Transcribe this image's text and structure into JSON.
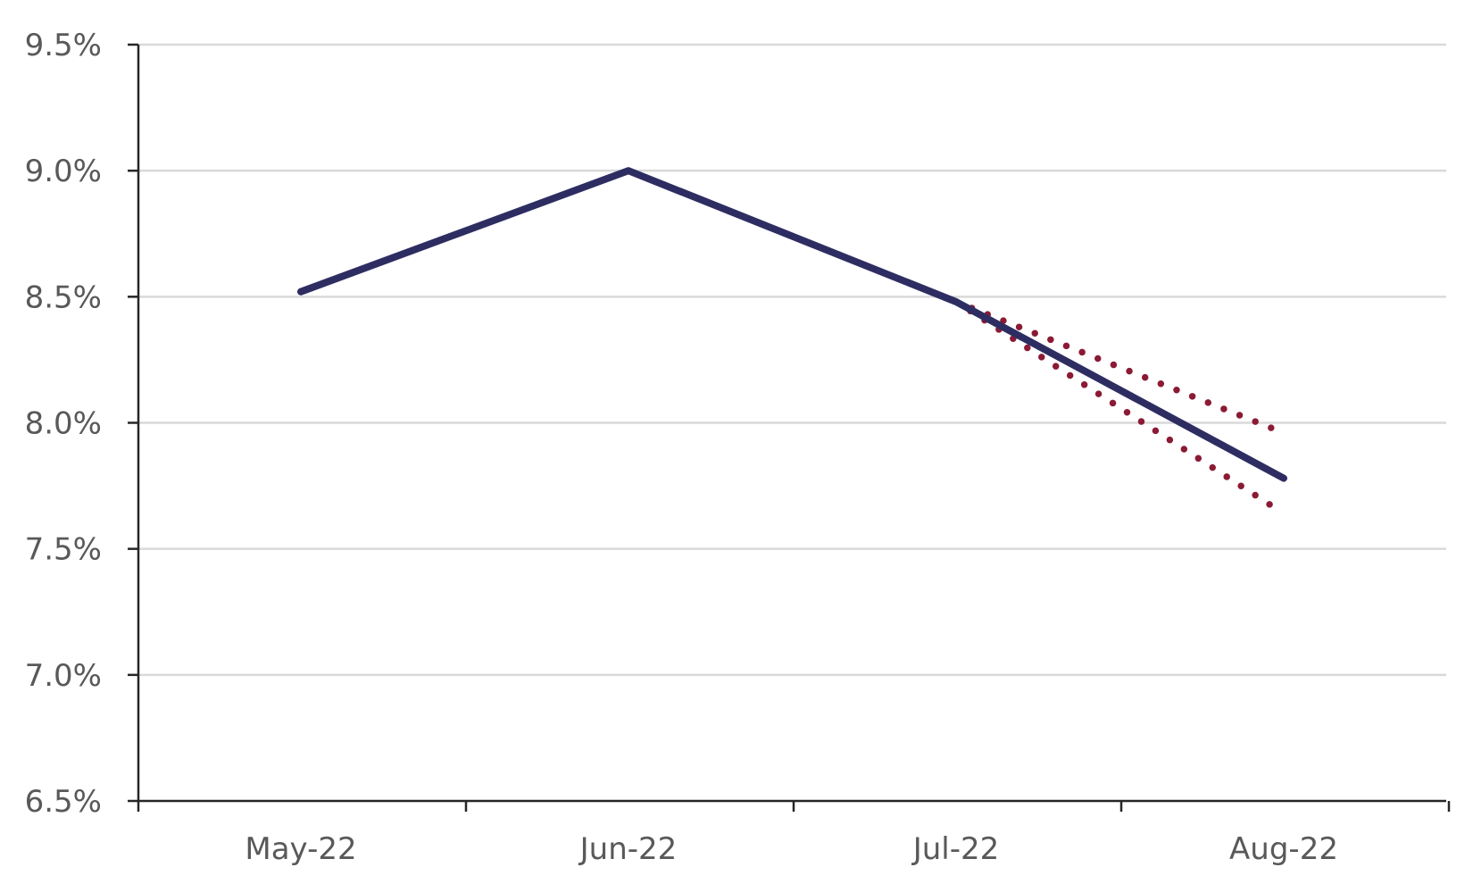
{
  "chart_data": {
    "type": "line",
    "x": [
      "May-22",
      "Jun-22",
      "Jul-22",
      "Aug-22"
    ],
    "series": [
      {
        "values": [
          8.52,
          9.0,
          8.48,
          7.78
        ],
        "color": "#2e2d62",
        "style": "solid"
      },
      {
        "values": [
          null,
          null,
          8.48,
          7.96
        ],
        "color": "#8b1a35",
        "style": "dotted"
      },
      {
        "values": [
          null,
          null,
          8.48,
          7.64
        ],
        "color": "#8b1a35",
        "style": "dotted"
      }
    ],
    "y_ticks": [
      "6.5%",
      "7.0%",
      "7.5%",
      "8.0%",
      "8.5%",
      "9.0%",
      "9.5%"
    ],
    "ylim": [
      6.5,
      9.5
    ],
    "grid": true,
    "legend": "none"
  }
}
